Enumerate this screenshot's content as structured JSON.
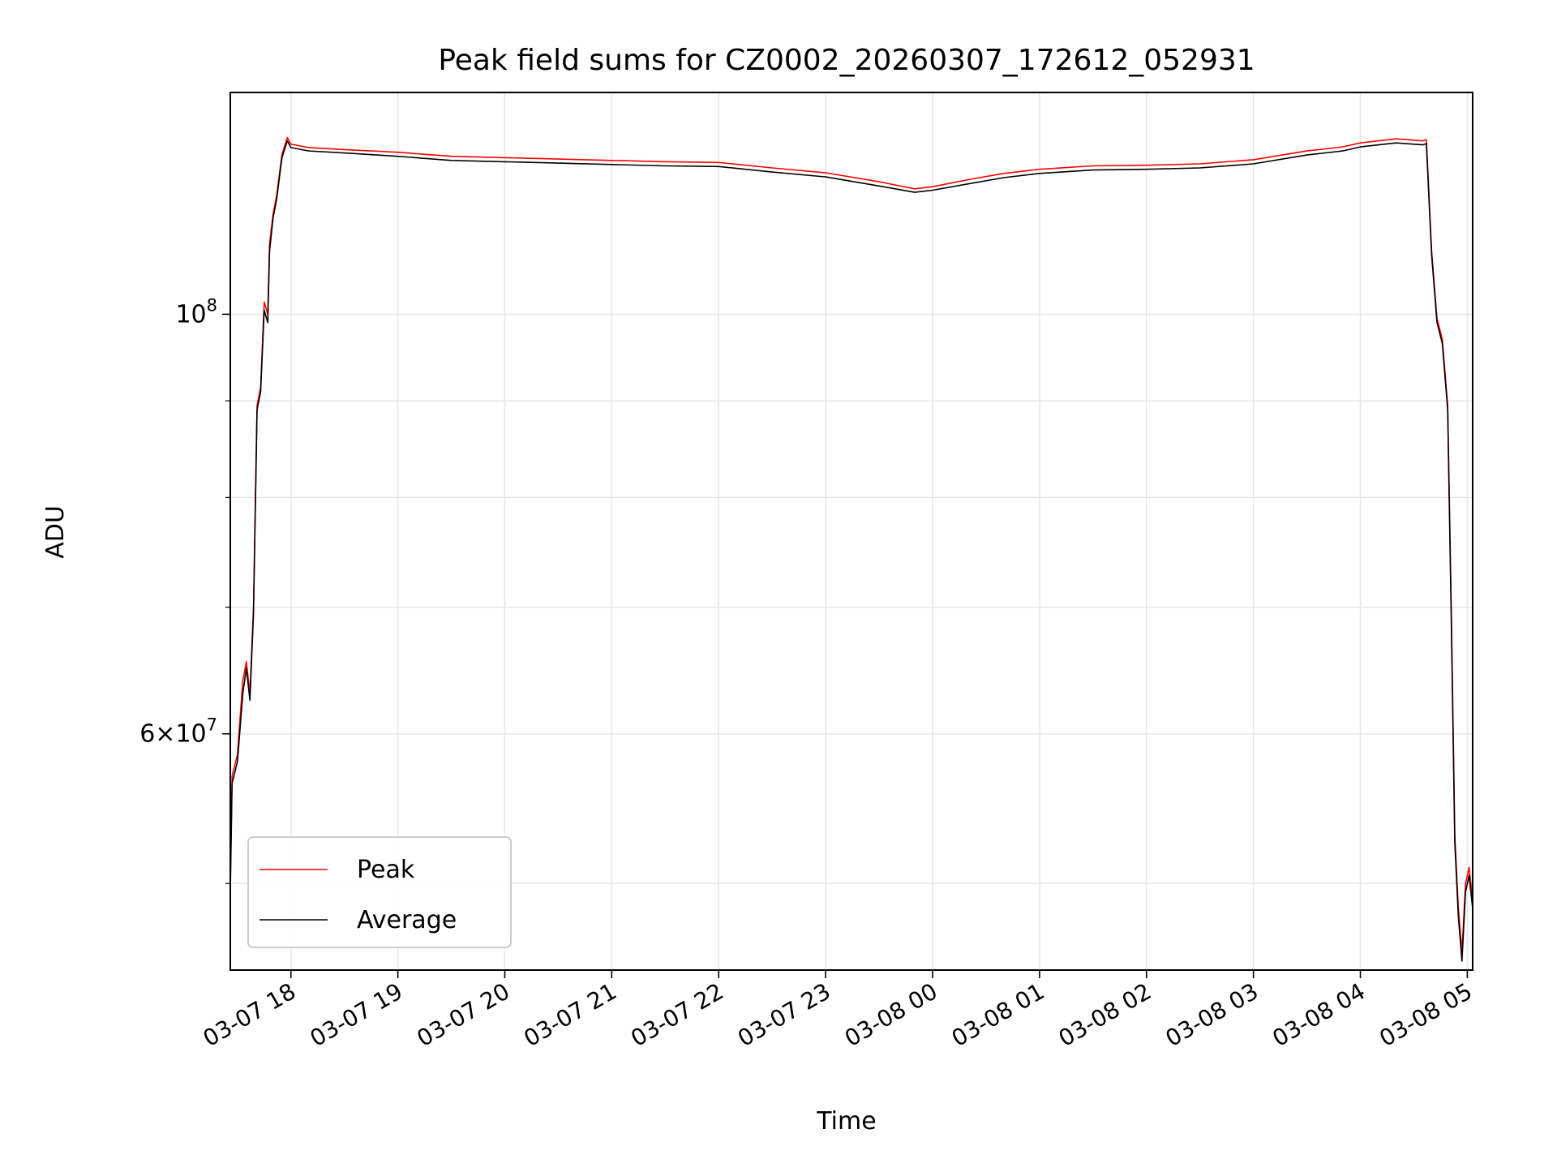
{
  "chart_data": {
    "type": "line",
    "title": "Peak field sums for CZ0002_20260307_172612_052931",
    "xlabel": "Time",
    "ylabel": "ADU",
    "yscale": "log",
    "ylim": [
      45000000,
      131000000
    ],
    "xlim": [
      "2026-03-07 17:26",
      "2026-03-08 05:03"
    ],
    "grid": true,
    "legend_position": "lower-left",
    "x_ticks": [
      {
        "t": "2026-03-07 18:00",
        "label": "03-07 18"
      },
      {
        "t": "2026-03-07 19:00",
        "label": "03-07 19"
      },
      {
        "t": "2026-03-07 20:00",
        "label": "03-07 20"
      },
      {
        "t": "2026-03-07 21:00",
        "label": "03-07 21"
      },
      {
        "t": "2026-03-07 22:00",
        "label": "03-07 22"
      },
      {
        "t": "2026-03-07 23:00",
        "label": "03-07 23"
      },
      {
        "t": "2026-03-08 00:00",
        "label": "03-08 00"
      },
      {
        "t": "2026-03-08 01:00",
        "label": "03-08 01"
      },
      {
        "t": "2026-03-08 02:00",
        "label": "03-08 02"
      },
      {
        "t": "2026-03-08 03:00",
        "label": "03-08 03"
      },
      {
        "t": "2026-03-08 04:00",
        "label": "03-08 04"
      },
      {
        "t": "2026-03-08 05:00",
        "label": "03-08 05"
      }
    ],
    "y_major_ticks": [
      {
        "value": 60000000,
        "base": "6×10",
        "exp": "7"
      },
      {
        "value": 100000000,
        "base": "10",
        "exp": "8"
      }
    ],
    "y_minor_ticks": [
      50000000,
      70000000,
      80000000,
      90000000
    ],
    "series": [
      {
        "name": "Peak",
        "color": "#ff0000",
        "x": [
          "2026-03-07 17:26",
          "2026-03-07 17:27",
          "2026-03-07 17:30",
          "2026-03-07 17:33",
          "2026-03-07 17:35",
          "2026-03-07 17:37",
          "2026-03-07 17:39",
          "2026-03-07 17:41",
          "2026-03-07 17:43",
          "2026-03-07 17:45",
          "2026-03-07 17:47",
          "2026-03-07 17:48",
          "2026-03-07 17:50",
          "2026-03-07 17:52",
          "2026-03-07 17:55",
          "2026-03-07 17:58",
          "2026-03-07 18:00",
          "2026-03-07 18:10",
          "2026-03-07 18:30",
          "2026-03-07 19:00",
          "2026-03-07 19:30",
          "2026-03-07 20:00",
          "2026-03-07 20:30",
          "2026-03-07 21:00",
          "2026-03-07 21:30",
          "2026-03-07 22:00",
          "2026-03-07 22:30",
          "2026-03-07 23:00",
          "2026-03-07 23:30",
          "2026-03-07 23:50",
          "2026-03-08 00:00",
          "2026-03-08 00:20",
          "2026-03-08 00:40",
          "2026-03-08 01:00",
          "2026-03-08 01:30",
          "2026-03-08 02:00",
          "2026-03-08 02:30",
          "2026-03-08 03:00",
          "2026-03-08 03:30",
          "2026-03-08 03:50",
          "2026-03-08 04:00",
          "2026-03-08 04:20",
          "2026-03-08 04:35",
          "2026-03-08 04:37",
          "2026-03-08 04:40",
          "2026-03-08 04:43",
          "2026-03-08 04:46",
          "2026-03-08 04:49",
          "2026-03-08 04:51",
          "2026-03-08 04:53",
          "2026-03-08 04:55",
          "2026-03-08 04:57",
          "2026-03-08 04:59",
          "2026-03-08 05:01",
          "2026-03-08 05:03"
        ],
        "y": [
          50000000,
          57000000,
          58500000,
          64000000,
          65500000,
          63000000,
          70000000,
          89500000,
          91500000,
          101500000,
          100000000,
          109000000,
          113000000,
          115500000,
          121500000,
          124000000,
          123000000,
          122500000,
          122200000,
          121800000,
          121200000,
          121000000,
          120800000,
          120600000,
          120400000,
          120300000,
          119500000,
          118800000,
          117500000,
          116500000,
          116800000,
          117800000,
          118700000,
          119300000,
          119800000,
          119900000,
          120100000,
          120700000,
          122000000,
          122600000,
          123200000,
          123800000,
          123500000,
          123700000,
          108000000,
          99500000,
          97000000,
          89500000,
          70000000,
          53000000,
          48500000,
          46000000,
          50000000,
          51000000,
          49000000
        ]
      },
      {
        "name": "Average",
        "color": "#000000",
        "x": [
          "2026-03-07 17:26",
          "2026-03-07 17:27",
          "2026-03-07 17:30",
          "2026-03-07 17:33",
          "2026-03-07 17:35",
          "2026-03-07 17:37",
          "2026-03-07 17:39",
          "2026-03-07 17:41",
          "2026-03-07 17:43",
          "2026-03-07 17:45",
          "2026-03-07 17:47",
          "2026-03-07 17:48",
          "2026-03-07 17:50",
          "2026-03-07 17:52",
          "2026-03-07 17:55",
          "2026-03-07 17:58",
          "2026-03-07 18:00",
          "2026-03-07 18:10",
          "2026-03-07 18:30",
          "2026-03-07 19:00",
          "2026-03-07 19:30",
          "2026-03-07 20:00",
          "2026-03-07 20:30",
          "2026-03-07 21:00",
          "2026-03-07 21:30",
          "2026-03-07 22:00",
          "2026-03-07 22:30",
          "2026-03-07 23:00",
          "2026-03-07 23:30",
          "2026-03-07 23:50",
          "2026-03-08 00:00",
          "2026-03-08 00:20",
          "2026-03-08 00:40",
          "2026-03-08 01:00",
          "2026-03-08 01:30",
          "2026-03-08 02:00",
          "2026-03-08 02:30",
          "2026-03-08 03:00",
          "2026-03-08 03:30",
          "2026-03-08 03:50",
          "2026-03-08 04:00",
          "2026-03-08 04:20",
          "2026-03-08 04:35",
          "2026-03-08 04:37",
          "2026-03-08 04:40",
          "2026-03-08 04:43",
          "2026-03-08 04:46",
          "2026-03-08 04:49",
          "2026-03-08 04:51",
          "2026-03-08 04:53",
          "2026-03-08 04:55",
          "2026-03-08 04:57",
          "2026-03-08 04:59",
          "2026-03-08 05:01",
          "2026-03-08 05:03"
        ],
        "y": [
          49500000,
          56500000,
          58000000,
          63000000,
          65000000,
          62500000,
          69500000,
          89000000,
          91000000,
          100500000,
          99000000,
          108000000,
          112500000,
          115000000,
          121000000,
          123500000,
          122500000,
          122000000,
          121700000,
          121200000,
          120600000,
          120400000,
          120200000,
          120000000,
          119800000,
          119700000,
          118900000,
          118200000,
          116900000,
          116000000,
          116300000,
          117200000,
          118100000,
          118700000,
          119200000,
          119300000,
          119500000,
          120100000,
          121400000,
          122000000,
          122600000,
          123200000,
          122900000,
          123100000,
          107500000,
          99000000,
          96500000,
          89000000,
          69000000,
          52500000,
          48000000,
          45500000,
          49500000,
          50500000,
          48500000
        ]
      }
    ]
  }
}
